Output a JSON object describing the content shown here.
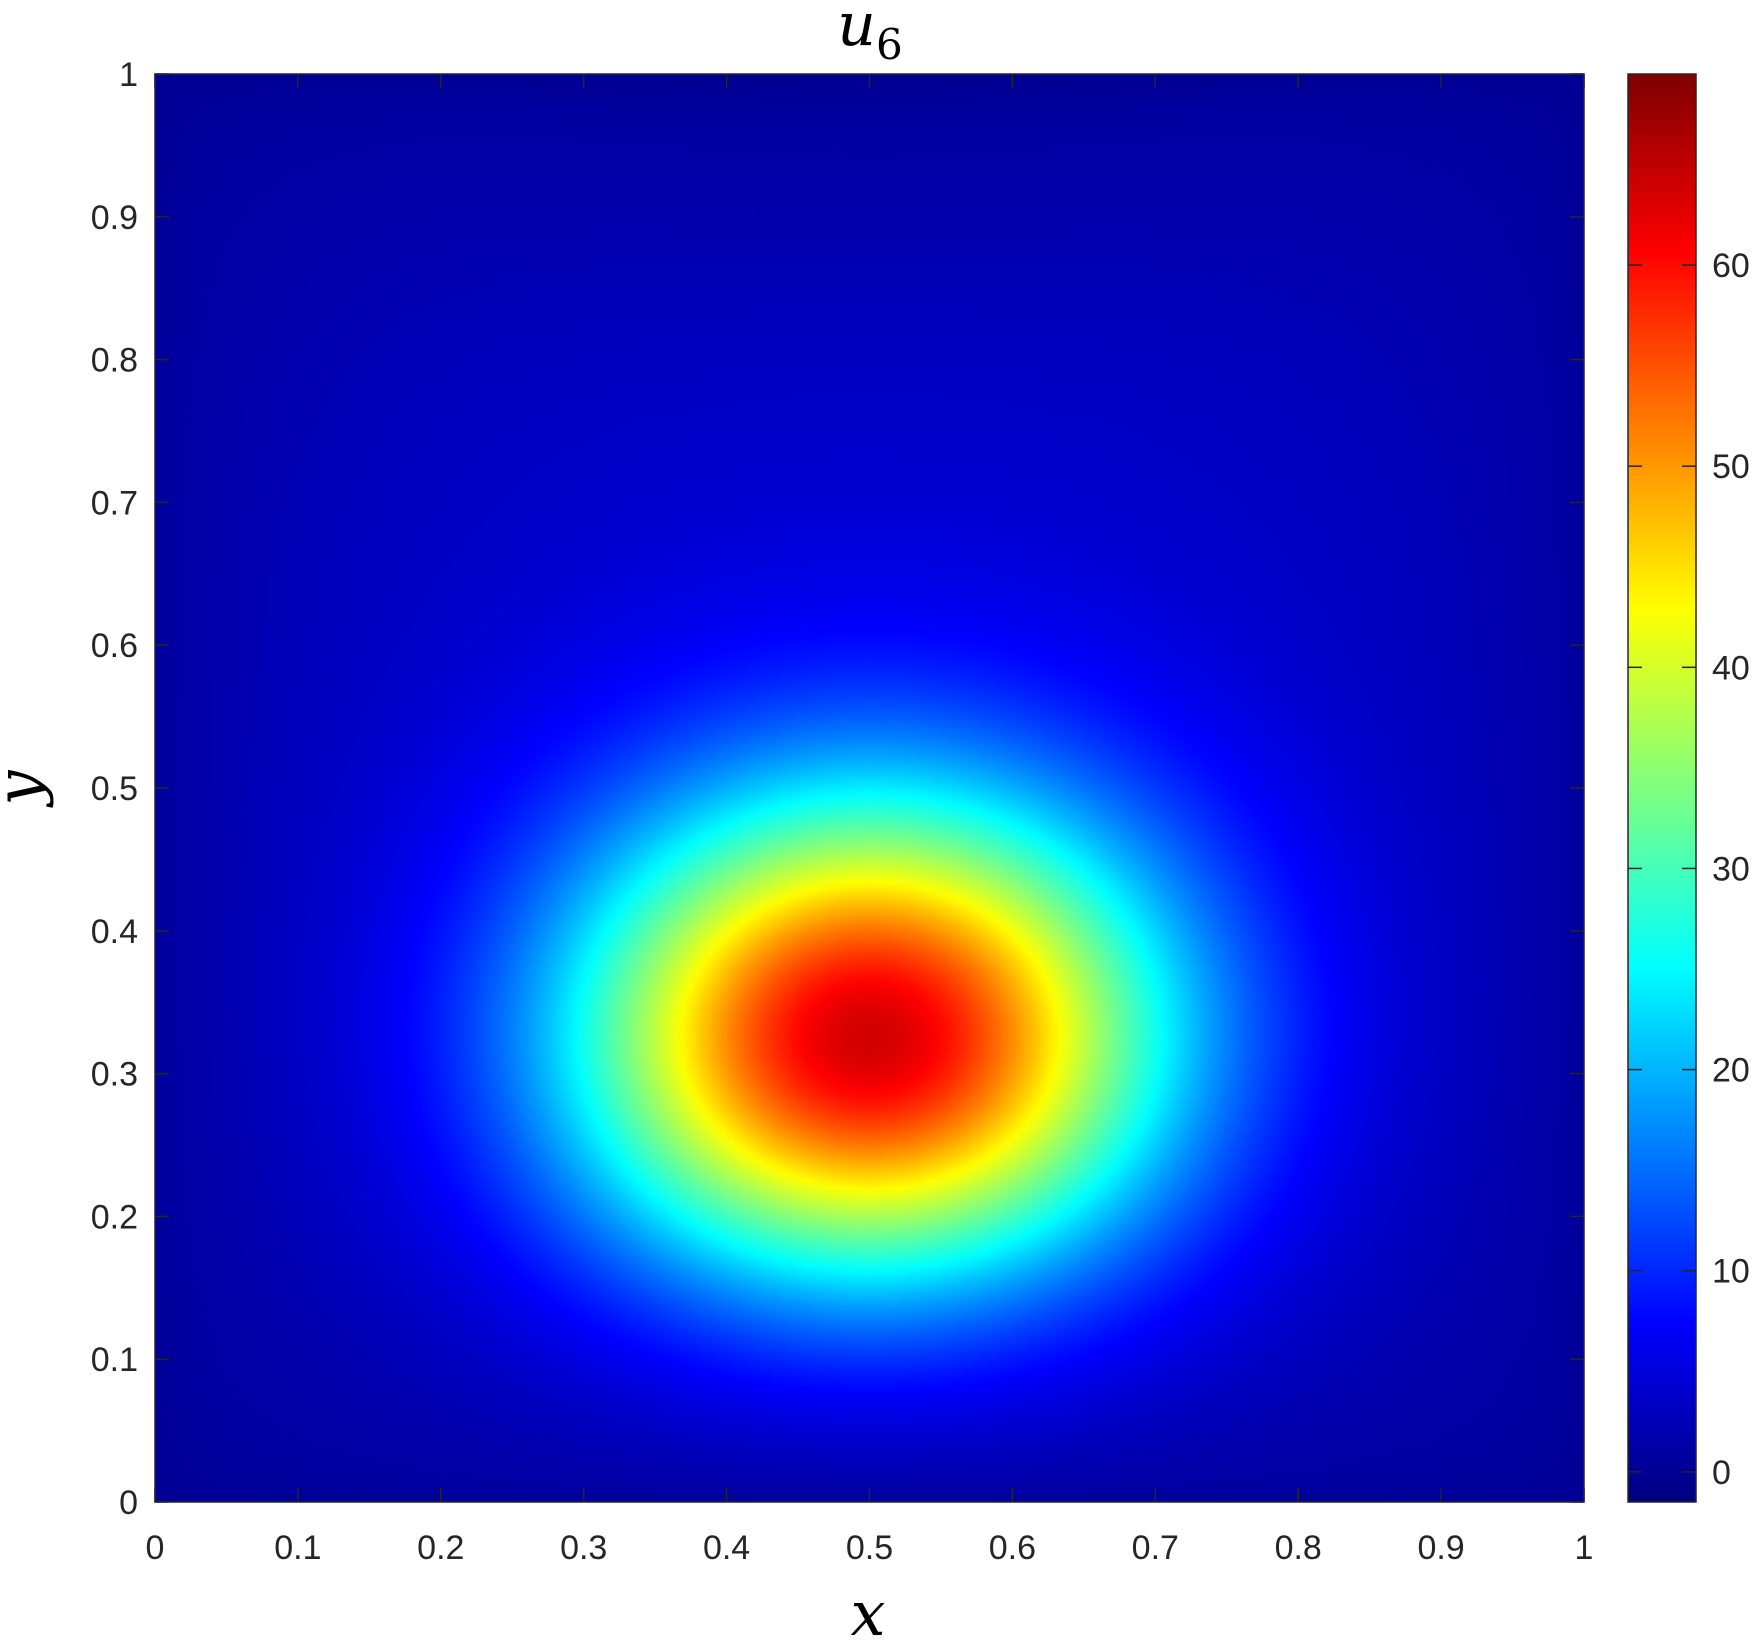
{
  "chart_data": {
    "type": "heatmap",
    "title_main": "u",
    "title_sub": "6",
    "xlabel": "x",
    "ylabel": "y",
    "xlim": [
      0,
      1
    ],
    "ylim": [
      0,
      1
    ],
    "xticks": [
      "0",
      "0.1",
      "0.2",
      "0.3",
      "0.4",
      "0.5",
      "0.6",
      "0.7",
      "0.8",
      "0.9",
      "1"
    ],
    "yticks": [
      "0",
      "0.1",
      "0.2",
      "0.3",
      "0.4",
      "0.5",
      "0.6",
      "0.7",
      "0.8",
      "0.9",
      "1"
    ],
    "colormap": "jet",
    "colorbar": {
      "range": [
        -1.5,
        69.5
      ],
      "ticks": [
        0,
        10,
        20,
        30,
        40,
        50,
        60
      ],
      "tick_labels": [
        "0",
        "10",
        "20",
        "30",
        "40",
        "50",
        "60"
      ]
    },
    "field": {
      "peak_value": 69.5,
      "peak_location": [
        0.5,
        0.31
      ],
      "min_value": -1.5,
      "min_location": [
        0.5,
        0.93
      ],
      "shape": "single smooth lobe, wider than tall, vanishing at the boundary"
    },
    "grid": false
  }
}
